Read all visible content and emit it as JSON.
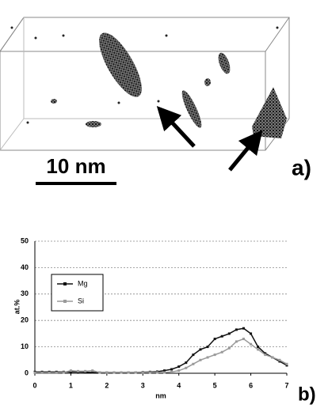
{
  "panel_a": {
    "scale_bar": "10 nm",
    "label": "a)"
  },
  "panel_b_label": "b)",
  "chart_data": {
    "type": "line",
    "x_label": "nm",
    "y_label": "at.%",
    "x": [
      0,
      0.2,
      0.4,
      0.6,
      0.8,
      1,
      1.2,
      1.4,
      1.6,
      1.8,
      2,
      2.2,
      2.4,
      2.6,
      2.8,
      3,
      3.2,
      3.4,
      3.6,
      3.8,
      4,
      4.2,
      4.4,
      4.6,
      4.8,
      5,
      5.2,
      5.4,
      5.6,
      5.8,
      6,
      6.2,
      6.4,
      6.6,
      6.8,
      7
    ],
    "series": [
      {
        "name": "Mg",
        "color": "#111111",
        "values": [
          0.5,
          0.5,
          0.5,
          0.5,
          0.5,
          0.5,
          0.5,
          0.4,
          0.3,
          0.3,
          0.3,
          0.3,
          0.3,
          0.3,
          0.3,
          0.4,
          0.5,
          0.6,
          1,
          1.5,
          2.5,
          4,
          7,
          9,
          10,
          13,
          14,
          15,
          16.5,
          17,
          15,
          10,
          7.5,
          6,
          4.5,
          3
        ]
      },
      {
        "name": "Si",
        "color": "#9a9a9a",
        "values": [
          0.2,
          0.2,
          0.2,
          0.2,
          0.3,
          1,
          0.8,
          0.8,
          1,
          0.3,
          0.3,
          0.3,
          0.3,
          0.3,
          0.3,
          0.3,
          0.3,
          0.3,
          0.3,
          0.5,
          1,
          2,
          3.5,
          5,
          6,
          7,
          8,
          9.5,
          12,
          13,
          11,
          9,
          7,
          6,
          5,
          3.5
        ]
      }
    ],
    "xlim": [
      0,
      7
    ],
    "xticks": [
      0,
      1,
      2,
      3,
      4,
      5,
      6,
      7
    ],
    "ylim": [
      0,
      50
    ],
    "yticks": [
      0,
      10,
      20,
      30,
      40,
      50
    ],
    "grid": true,
    "legend": "upper left"
  }
}
